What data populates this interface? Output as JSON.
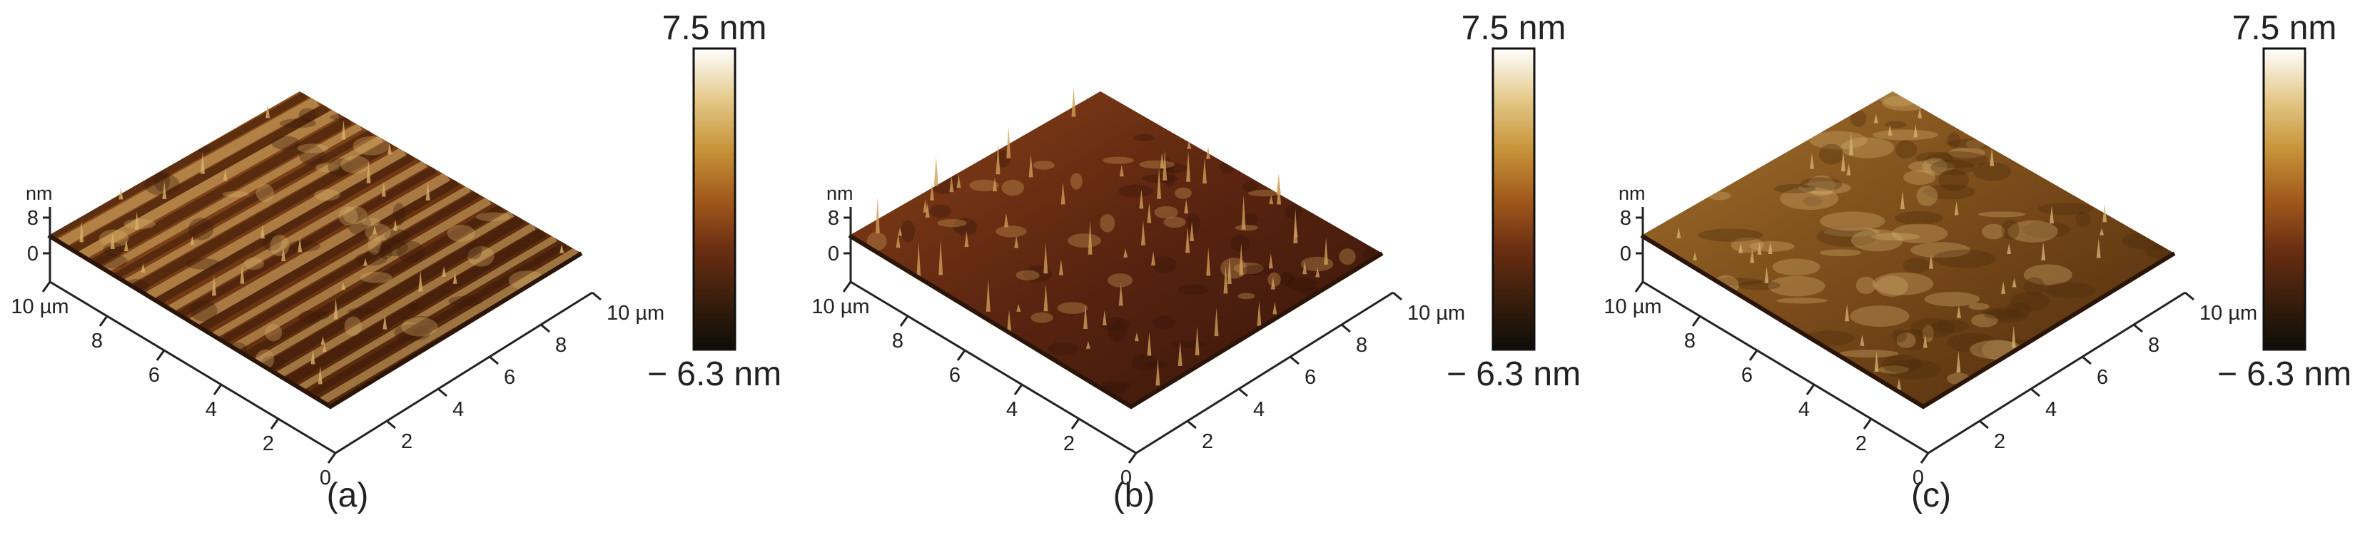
{
  "colorbar": {
    "max_label": "7.5 nm",
    "min_label": "− 6.3 nm",
    "stops": [
      "#0e0d08",
      "#3a1e0c",
      "#6b2e12",
      "#a25a1c",
      "#c8943a",
      "#e4c98a",
      "#ffffff"
    ]
  },
  "z_unit": "nm",
  "axis_unit": "µm",
  "panels": [
    {
      "id": "a",
      "label": "(a)",
      "z_ticks": [
        "8",
        "0"
      ],
      "y_ticks": [
        "10 µm",
        "8",
        "6",
        "4",
        "2",
        "0"
      ],
      "x_ticks": [
        "2",
        "4",
        "6",
        "8",
        "10 µm"
      ],
      "surface_colors": {
        "base": "#6e3613",
        "dark": "#3a1a08",
        "mid": "#9a5a22",
        "light": "#d8b06a"
      },
      "texture": "striped"
    },
    {
      "id": "b",
      "label": "(b)",
      "z_ticks": [
        "8",
        "0"
      ],
      "y_ticks": [
        "10 µm",
        "8",
        "6",
        "4",
        "2",
        "0"
      ],
      "x_ticks": [
        "2",
        "4",
        "6",
        "8",
        "10 µm"
      ],
      "surface_colors": {
        "base": "#5a2410",
        "dark": "#34150a",
        "mid": "#8a4418",
        "light": "#cf9d58"
      },
      "texture": "spiky"
    },
    {
      "id": "c",
      "label": "(c)",
      "z_ticks": [
        "8",
        "0"
      ],
      "y_ticks": [
        "10 µm",
        "8",
        "6",
        "4",
        "2",
        "0"
      ],
      "x_ticks": [
        "2",
        "4",
        "6",
        "8",
        "10 µm"
      ],
      "surface_colors": {
        "base": "#7a4a1a",
        "dark": "#4a2a0c",
        "mid": "#a0702c",
        "light": "#d4b070"
      },
      "texture": "mottled"
    }
  ]
}
